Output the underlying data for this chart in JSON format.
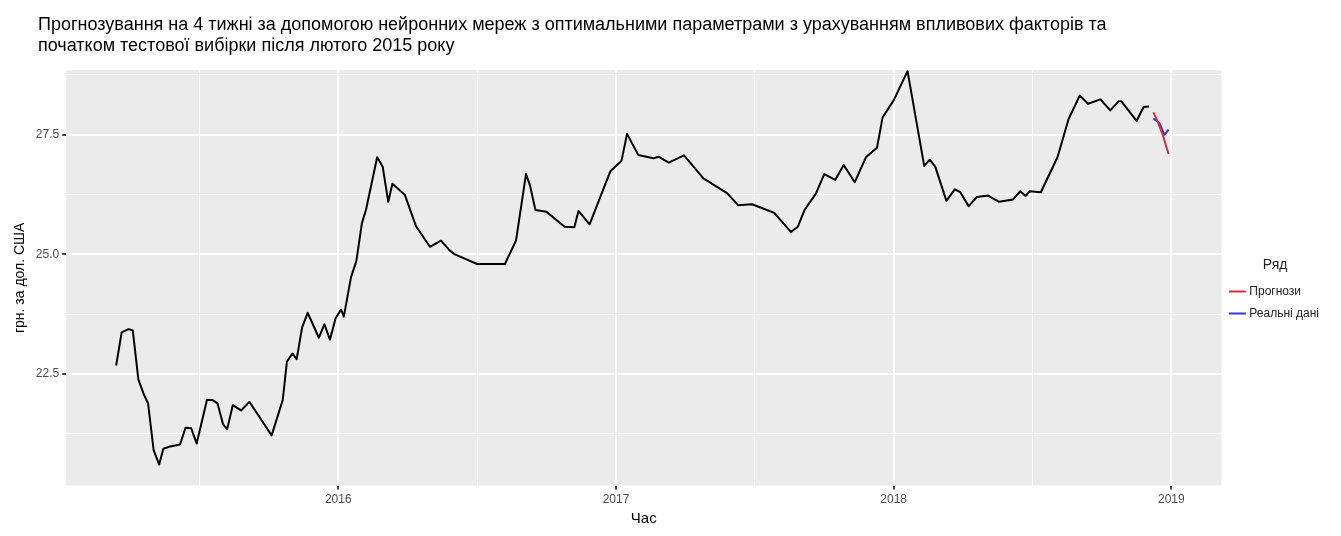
{
  "chart_data": {
    "type": "line",
    "title": "Прогнозування на 4 тижні за допомогою нейронних мереж з оптимальними параметрами з урахуванням впливових факторів та початком тестової вибірки після лютого 2015 року",
    "xlabel": "Час",
    "ylabel": "грн. за дол. США",
    "legend_title": "Ряд",
    "legend": "right",
    "grid": true,
    "marker": "none",
    "line_style": "solid",
    "xlim": [
      2015.02,
      2019.18
    ],
    "xticks": [
      {
        "value": 2015.5,
        "label": null
      },
      2016,
      {
        "value": 2016.5,
        "label": null
      },
      2017,
      {
        "value": 2017.5,
        "label": null
      },
      2018,
      {
        "value": 2018.5,
        "label": null
      },
      2019
    ],
    "ylim": [
      20.17,
      28.85
    ],
    "yticks": [
      {
        "value": 21.25,
        "label": null
      },
      22.5,
      {
        "value": 23.75,
        "label": null
      },
      {
        "value": 25,
        "label": "25.0"
      },
      {
        "value": 26.25,
        "label": null
      },
      27.5,
      {
        "value": 28.75,
        "label": null
      }
    ],
    "series": [
      {
        "color": "#000000",
        "x": [
          2015.2,
          2015.22,
          2015.245,
          2015.26,
          2015.28,
          2015.3,
          2015.315,
          2015.335,
          2015.355,
          2015.37,
          2015.39,
          2015.43,
          2015.45,
          2015.47,
          2015.49,
          2015.527,
          2015.546,
          2015.565,
          2015.585,
          2015.6,
          2015.62,
          2015.65,
          2015.68,
          2015.76,
          2015.8,
          2015.815,
          2015.835,
          2015.85,
          2015.87,
          2015.89,
          2015.93,
          2015.95,
          2015.97,
          2015.99,
          2016.01,
          2016.02,
          2016.046,
          2016.065,
          2016.085,
          2016.1,
          2016.14,
          2016.16,
          2016.18,
          2016.195,
          2016.24,
          2016.28,
          2016.33,
          2016.37,
          2016.4,
          2016.42,
          2016.5,
          2016.6,
          2016.64,
          2016.676,
          2016.69,
          2016.71,
          2016.75,
          2016.815,
          2016.85,
          2016.865,
          2016.905,
          2016.98,
          2017.02,
          2017.04,
          2017.08,
          2017.135,
          2017.155,
          2017.19,
          2017.245,
          2017.315,
          2017.4,
          2017.44,
          2017.49,
          2017.57,
          2017.63,
          2017.655,
          2017.68,
          2017.72,
          2017.75,
          2017.79,
          2017.82,
          2017.86,
          2017.9,
          2017.94,
          2017.96,
          2018.0,
          2018.05,
          2018.11,
          2018.13,
          2018.15,
          2018.19,
          2018.22,
          2018.24,
          2018.27,
          2018.3,
          2018.34,
          2018.38,
          2018.43,
          2018.456,
          2018.475,
          2018.49,
          2018.53,
          2018.59,
          2018.63,
          2018.67,
          2018.7,
          2018.745,
          2018.78,
          2018.81,
          2018.82,
          2018.875,
          2018.9,
          2018.92
        ],
        "values": [
          22.68,
          23.37,
          23.44,
          23.41,
          22.39,
          22.07,
          21.89,
          20.91,
          20.61,
          20.94,
          20.98,
          21.03,
          21.38,
          21.37,
          21.05,
          21.96,
          21.96,
          21.89,
          21.45,
          21.35,
          21.85,
          21.74,
          21.92,
          21.22,
          21.96,
          22.76,
          22.93,
          22.81,
          23.48,
          23.78,
          23.26,
          23.54,
          23.22,
          23.66,
          23.85,
          23.7,
          24.53,
          24.86,
          25.65,
          25.94,
          27.03,
          26.83,
          26.1,
          26.48,
          26.24,
          25.59,
          25.16,
          25.29,
          25.09,
          25.0,
          24.8,
          24.8,
          25.29,
          26.68,
          26.45,
          25.93,
          25.89,
          25.58,
          25.57,
          25.91,
          25.63,
          26.74,
          26.96,
          27.52,
          27.08,
          27.01,
          27.04,
          26.92,
          27.07,
          26.59,
          26.28,
          26.03,
          26.05,
          25.87,
          25.47,
          25.58,
          25.94,
          26.27,
          26.68,
          26.56,
          26.87,
          26.51,
          27.03,
          27.23,
          27.86,
          28.22,
          28.83,
          26.85,
          26.98,
          26.83,
          26.12,
          26.36,
          26.3,
          26.01,
          26.2,
          26.23,
          26.1,
          26.15,
          26.32,
          26.22,
          26.32,
          26.3,
          27.03,
          27.83,
          28.32,
          28.15,
          28.24,
          28.01,
          28.2,
          28.2,
          27.79,
          28.08,
          28.09
        ]
      },
      {
        "name": "Прогнози",
        "color": "#d03040",
        "x": [
          2018.935,
          2018.95,
          2018.97,
          2018.99
        ],
        "values": [
          27.97,
          27.79,
          27.48,
          27.1
        ]
      },
      {
        "name": "Реальні дані",
        "color": "#3535d0",
        "x": [
          2018.935,
          2018.957,
          2018.975,
          2018.99
        ],
        "values": [
          27.84,
          27.75,
          27.5,
          27.61
        ]
      }
    ]
  }
}
